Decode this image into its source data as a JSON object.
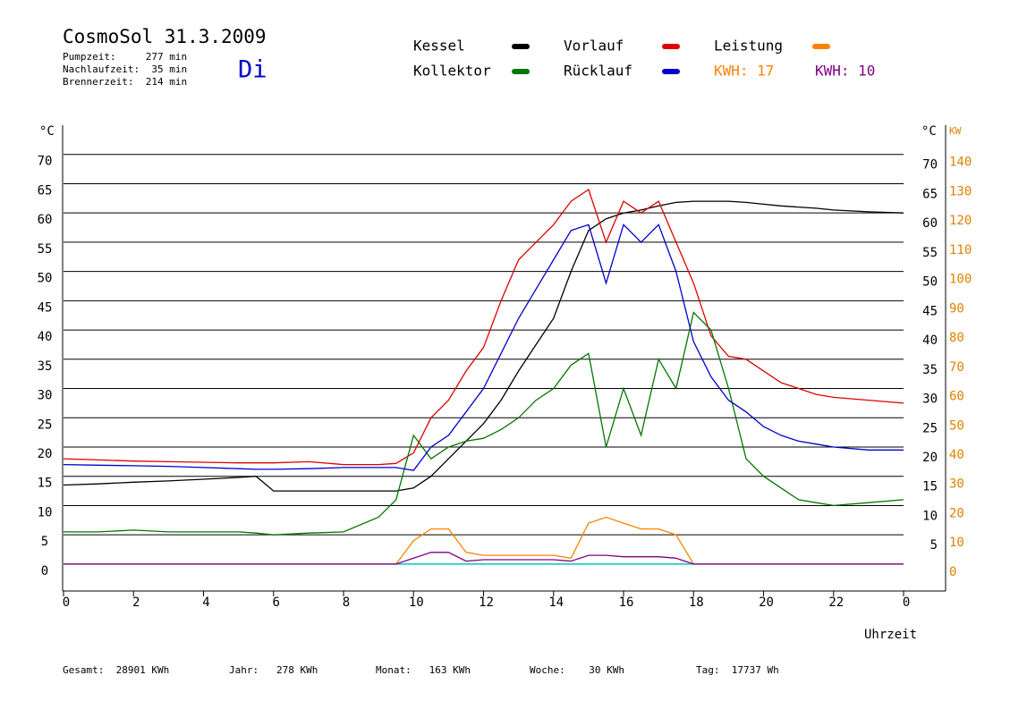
{
  "chart_data": {
    "type": "line",
    "title": "CosmoSol 31.3.2009",
    "info": [
      "Pumpzeit:     277 min",
      "Nachlaufzeit:  35 min",
      "Brennerzeit:  214 min"
    ],
    "weekday": "Di",
    "kwh": [
      {
        "text": "KWH: 17",
        "color": "#ff8000"
      },
      {
        "text": "KWH: 10",
        "color": "#800080"
      }
    ],
    "ylabel": "°C",
    "y2label_celsius": "°C",
    "y2label": "KW",
    "xlabel": "Uhrzeit",
    "xlim": [
      0,
      25.2
    ],
    "xticks": [
      0,
      2,
      4,
      6,
      8,
      10,
      12,
      14,
      16,
      18,
      20,
      22,
      {
        "value": 24,
        "label": "0"
      }
    ],
    "ylim": [
      -4.6,
      75
    ],
    "yticks": [
      0,
      5,
      10,
      15,
      20,
      25,
      30,
      35,
      40,
      45,
      50,
      55,
      60,
      65,
      70
    ],
    "yticks_right": [
      5,
      10,
      15,
      20,
      25,
      30,
      35,
      40,
      45,
      50,
      55,
      60,
      65,
      70
    ],
    "y2lim": [
      -9.2,
      150
    ],
    "y2ticks": [
      0,
      10,
      20,
      30,
      40,
      50,
      60,
      70,
      80,
      90,
      100,
      110,
      120,
      130,
      140
    ],
    "grid": true,
    "x": [
      0,
      1,
      2,
      3,
      4,
      5,
      5.5,
      6,
      7,
      8,
      9,
      9.5,
      10,
      10.5,
      11,
      11.5,
      12,
      12.5,
      13,
      13.5,
      14,
      14.5,
      15,
      15.5,
      16,
      16.5,
      17,
      17.5,
      18,
      18.5,
      19,
      19.5,
      20,
      20.5,
      21,
      21.5,
      22,
      23,
      24
    ],
    "series": [
      {
        "name": "Kessel",
        "color": "#000000",
        "values": [
          13.5,
          13.7,
          14,
          14.2,
          14.5,
          14.8,
          15,
          12.5,
          12.5,
          12.5,
          12.5,
          12.5,
          13,
          15,
          18,
          21,
          24,
          28,
          33,
          37.5,
          42,
          50,
          57,
          59,
          60,
          60.5,
          61.2,
          61.8,
          62,
          62,
          62,
          61.8,
          61.5,
          61.2,
          61,
          60.8,
          60.5,
          60.2,
          60
        ]
      },
      {
        "name": "Vorlauf",
        "color": "#e00000",
        "values": [
          18,
          17.8,
          17.6,
          17.5,
          17.4,
          17.3,
          17.3,
          17.3,
          17.5,
          17,
          17,
          17.2,
          19,
          25,
          28,
          33,
          37,
          45,
          52,
          55,
          58,
          62,
          64,
          55,
          62,
          60,
          62,
          55,
          48,
          39,
          35.5,
          35,
          33,
          31,
          30,
          29,
          28.5,
          28,
          27.5
        ]
      },
      {
        "name": "Leistung",
        "color": "#ff8000",
        "axis": "y2",
        "values": [
          0,
          0,
          0,
          0,
          0,
          0,
          0,
          0,
          0,
          0,
          0,
          0,
          8,
          12,
          12,
          4,
          3,
          3,
          3,
          3,
          3,
          2,
          14,
          16,
          14,
          12,
          12,
          10,
          0,
          0,
          0,
          0,
          0,
          0,
          0,
          0,
          0,
          0,
          0
        ]
      },
      {
        "name": "Kollektor",
        "color": "#007700",
        "values": [
          5.5,
          5.5,
          5.8,
          5.5,
          5.5,
          5.5,
          5.3,
          5,
          5.3,
          5.5,
          8,
          11,
          22,
          18,
          20,
          21,
          21.5,
          23,
          25,
          28,
          30,
          34,
          36,
          20,
          30,
          22,
          35,
          30,
          43,
          40,
          30,
          18,
          15,
          13,
          11,
          10.5,
          10,
          10.5,
          11
        ]
      },
      {
        "name": "Rücklauf",
        "color": "#0000cc",
        "values": [
          17,
          16.9,
          16.8,
          16.7,
          16.5,
          16.3,
          16.2,
          16.2,
          16.3,
          16.5,
          16.5,
          16.5,
          16,
          20,
          22,
          26,
          30,
          36,
          42,
          47,
          52,
          57,
          58,
          48,
          58,
          55,
          58,
          50,
          38,
          32,
          28,
          26,
          23.5,
          22,
          21,
          20.5,
          20,
          19.5,
          19.5
        ]
      },
      {
        "color": "#800080",
        "axis": "y2",
        "values": [
          0,
          0,
          0,
          0,
          0,
          0,
          0,
          0,
          0,
          0,
          0,
          0,
          2,
          4,
          4,
          1,
          1.5,
          1.5,
          1.5,
          1.5,
          1.5,
          1,
          3,
          3,
          2.5,
          2.5,
          2.5,
          2,
          0,
          0,
          0,
          0,
          0,
          0,
          0,
          0,
          0,
          0,
          0
        ]
      }
    ],
    "totals": [
      "Gesamt:  28901 KWh",
      "Jahr:   278 KWh",
      "Monat:   163 KWh",
      "Woche:    30 KWh",
      "Tag:  17737 Wh"
    ]
  }
}
